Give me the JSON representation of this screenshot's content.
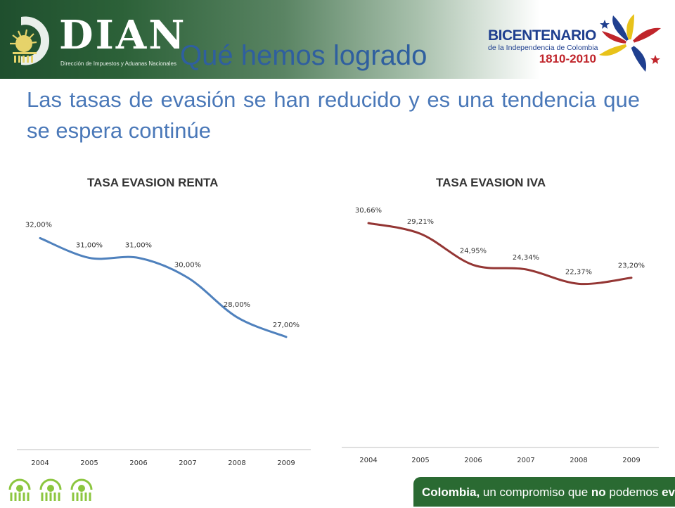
{
  "header": {
    "logo": "DIAN",
    "logo_subtitle": "Dirección de Impuestos y Aduanas Nacionales",
    "title": "Qué hemos logrado",
    "bicentenario": {
      "title": "BICENTENARIO",
      "subtitle": "de la Independencia de Colombia",
      "years": "1810-2010"
    }
  },
  "subtitle": "Las tasas de evasión se han reducido y es una tendencia que se espera continúe",
  "chart_data": [
    {
      "type": "line",
      "title": "TASA EVASION RENTA",
      "x": [
        "2004",
        "2005",
        "2006",
        "2007",
        "2008",
        "2009"
      ],
      "series": [
        {
          "values": [
            32.0,
            31.0,
            31.0,
            30.0,
            28.0,
            27.0
          ],
          "labels": [
            "32,00%",
            "31,00%",
            "31,00%",
            "30,00%",
            "28,00%",
            "27,00%"
          ]
        }
      ],
      "ylim": [
        21.3,
        32.3
      ],
      "color": "#4f81bd",
      "grid": false,
      "legend": "none"
    },
    {
      "type": "line",
      "title": "TASA EVASION IVA",
      "x": [
        "2004",
        "2005",
        "2006",
        "2007",
        "2008",
        "2009"
      ],
      "series": [
        {
          "values": [
            30.66,
            29.21,
            24.95,
            24.34,
            22.37,
            23.2
          ],
          "labels": [
            "30,66%",
            "29,21%",
            "24,95%",
            "24,34%",
            "22,37%",
            "23,20%"
          ]
        }
      ],
      "ylim": [
        0,
        40
      ],
      "color": "#943634",
      "grid": false,
      "legend": "none"
    }
  ],
  "footer": {
    "slogan_bold1": "Colombia,",
    "slogan_mid": " un compromiso que ",
    "slogan_bold2": "no",
    "slogan_mid2": " podemos ",
    "slogan_bold3": "evadir."
  }
}
